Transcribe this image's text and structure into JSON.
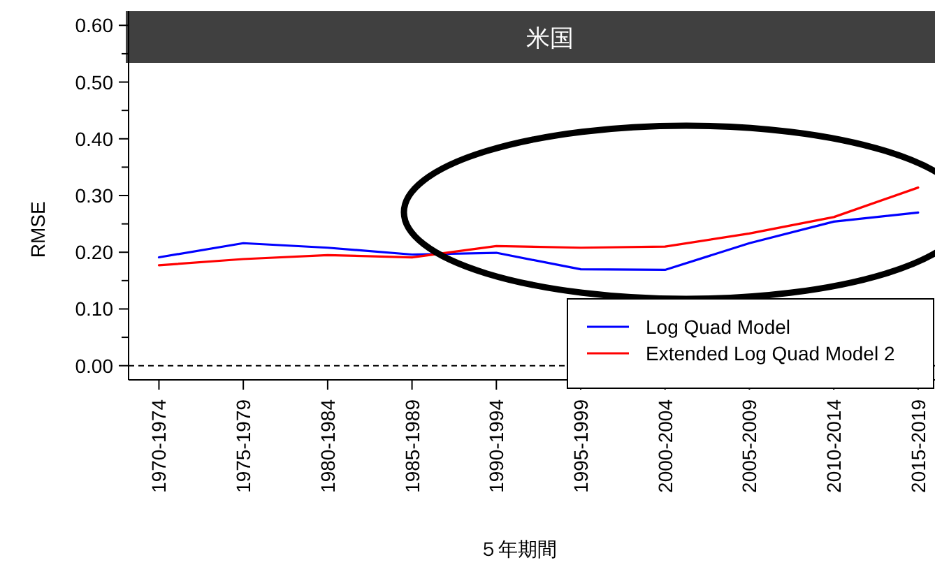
{
  "chart_data": {
    "type": "line",
    "title": "米国",
    "xlabel": "５年期間",
    "ylabel": "RMSE",
    "categories": [
      "1970-1974",
      "1975-1979",
      "1980-1984",
      "1985-1989",
      "1990-1994",
      "1995-1999",
      "2000-2004",
      "2005-2009",
      "2010-2014",
      "2015-2019"
    ],
    "series": [
      {
        "name": "Log Quad Model",
        "color": "#0000ff",
        "values": [
          0.191,
          0.216,
          0.208,
          0.196,
          0.199,
          0.17,
          0.169,
          0.216,
          0.254,
          0.27
        ]
      },
      {
        "name": "Extended Log Quad Model 2",
        "color": "#ff0000",
        "values": [
          0.177,
          0.188,
          0.195,
          0.191,
          0.211,
          0.208,
          0.21,
          0.233,
          0.262,
          0.314
        ]
      }
    ],
    "ylim": [
      -0.025,
      0.625
    ],
    "yticks": [
      {
        "value": 0,
        "label": "0.00"
      },
      {
        "value": 0.05,
        "label": null
      },
      {
        "value": 0.1,
        "label": "0.10"
      },
      {
        "value": 0.15,
        "label": null
      },
      {
        "value": 0.2,
        "label": "0.20"
      },
      {
        "value": 0.25,
        "label": null
      },
      {
        "value": 0.3,
        "label": "0.30"
      },
      {
        "value": 0.35,
        "label": null
      },
      {
        "value": 0.4,
        "label": "0.40"
      },
      {
        "value": 0.45,
        "label": null
      },
      {
        "value": 0.5,
        "label": "0.50"
      },
      {
        "value": 0.55,
        "label": null
      },
      {
        "value": 0.6,
        "label": "0.60"
      }
    ],
    "ref_lines": [
      {
        "axis": "y",
        "value": 0,
        "line_style": "dashed",
        "color": "#000000"
      }
    ],
    "legend": "bottom right",
    "grid": false,
    "marker": "none",
    "line_style": "solid"
  }
}
